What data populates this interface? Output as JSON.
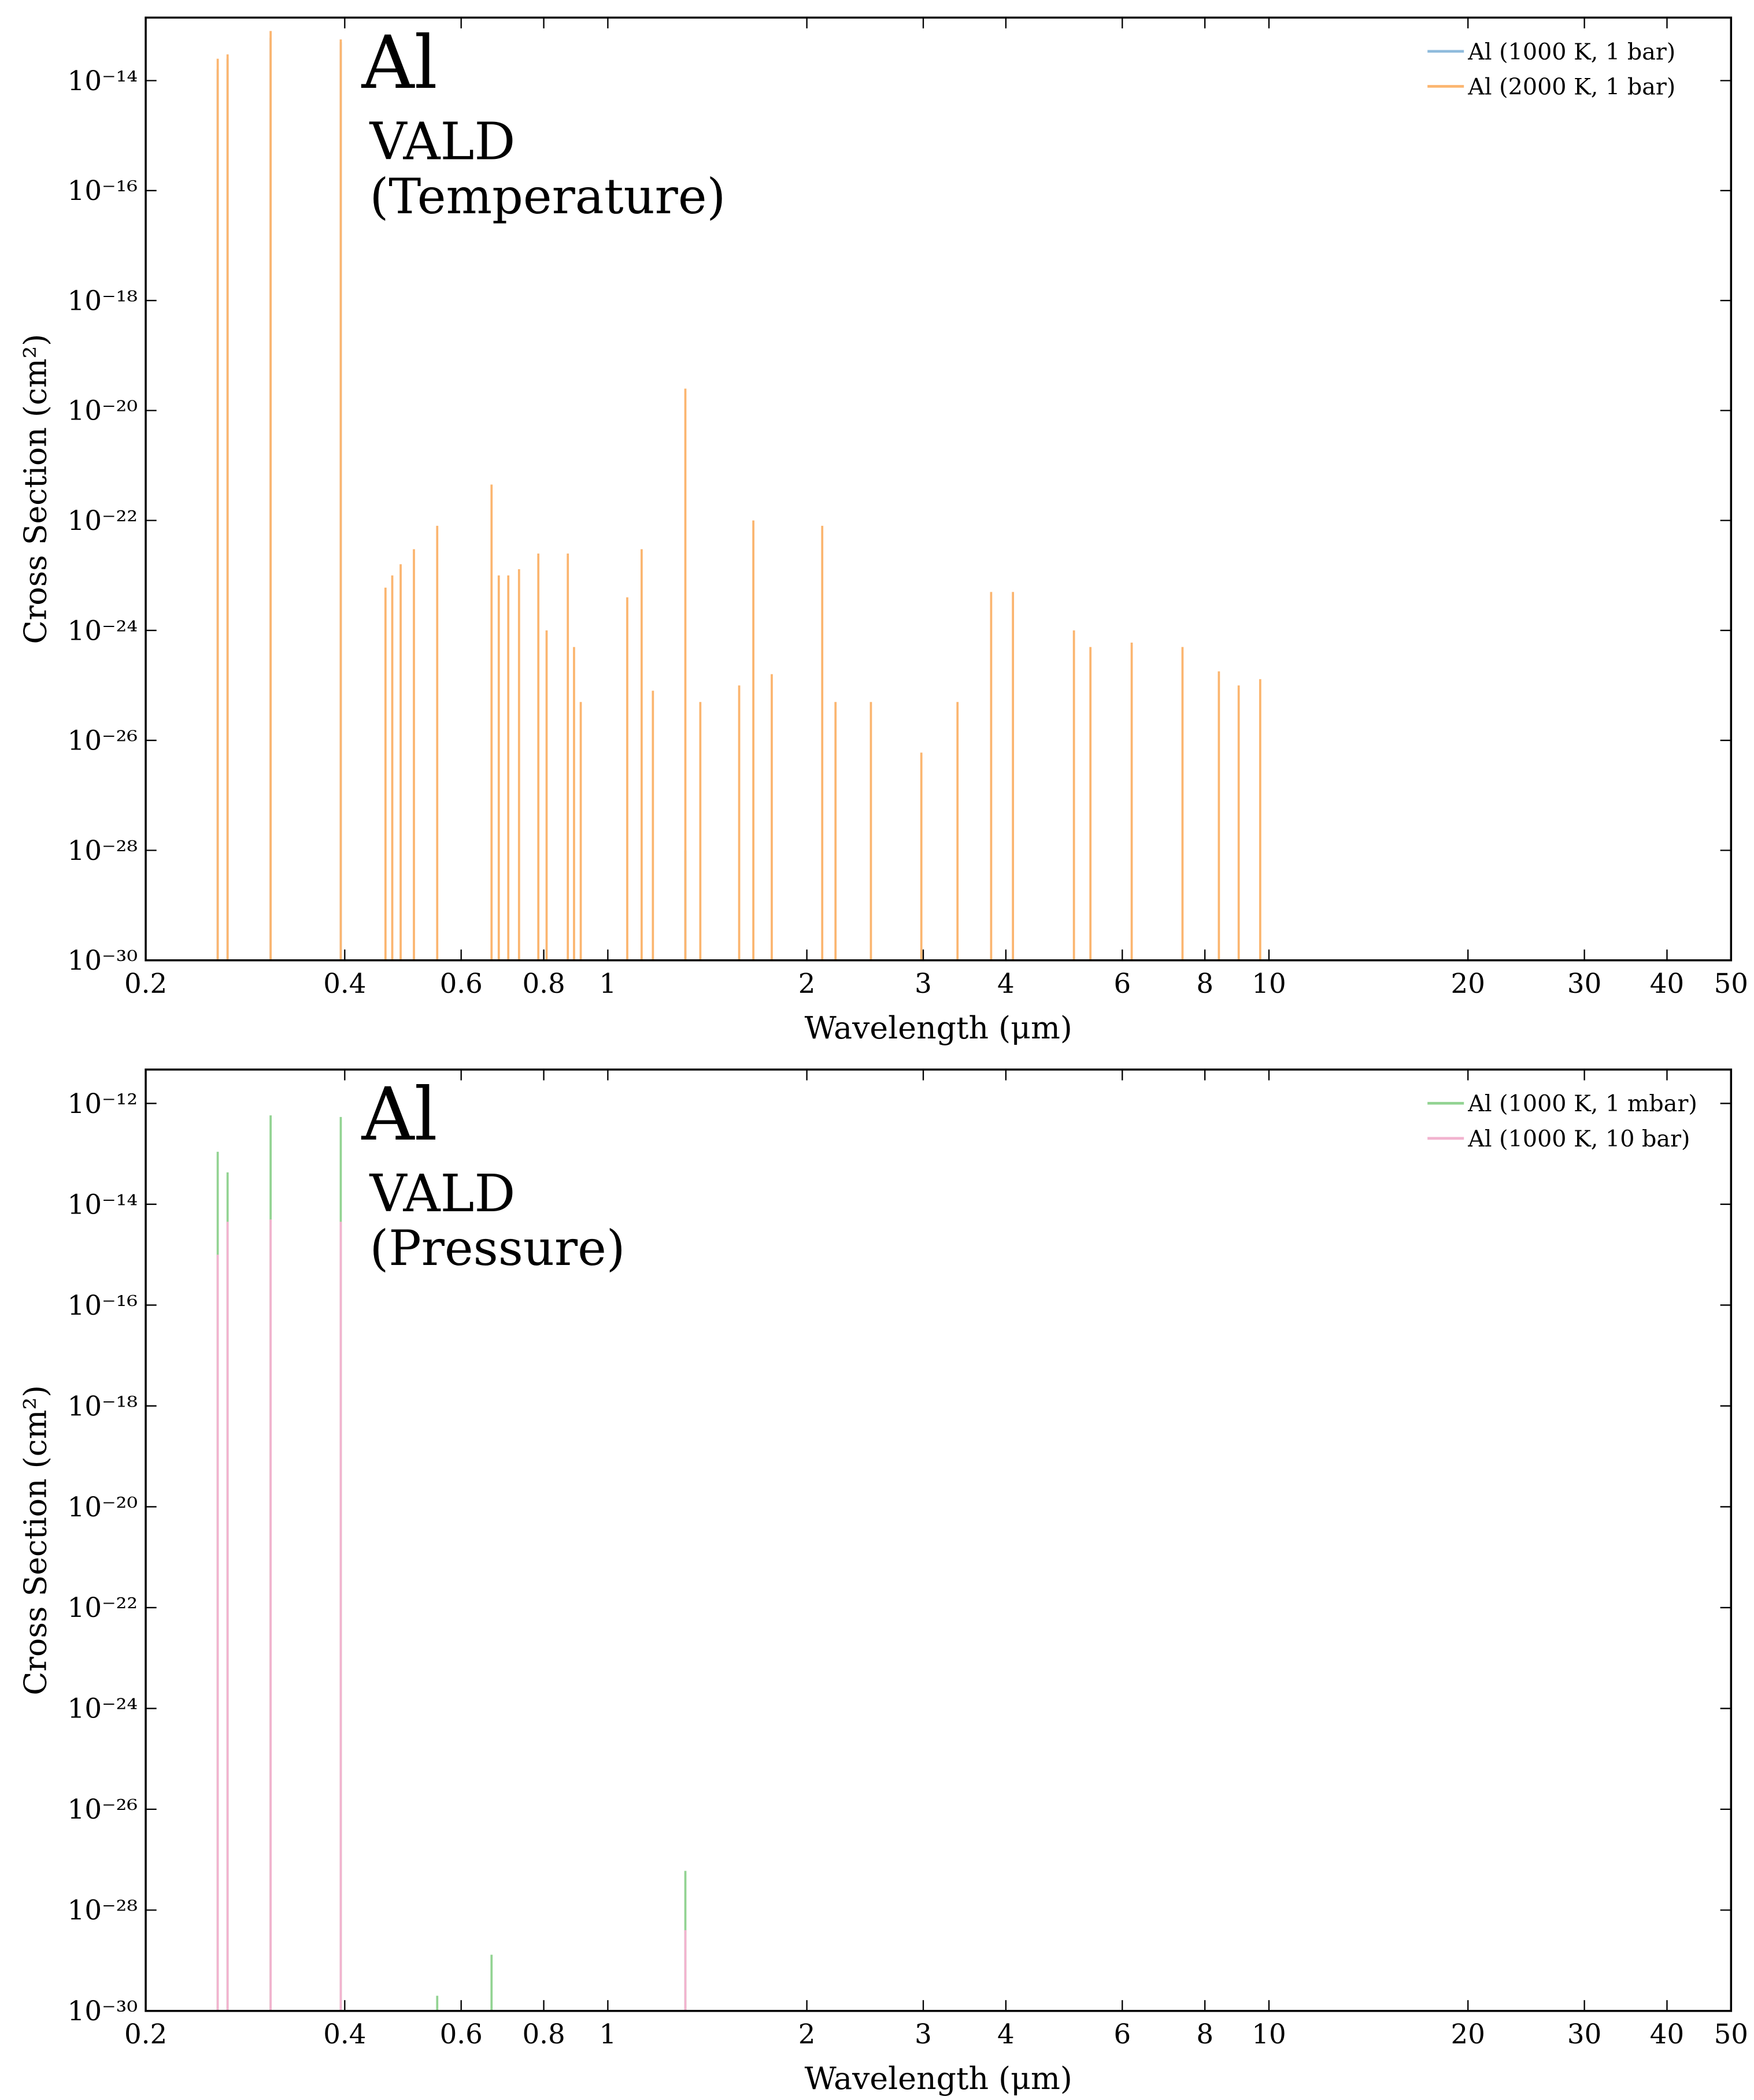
{
  "chart_data": [
    {
      "type": "spectrum",
      "xscale": "log",
      "yscale": "log",
      "legend": "upper right",
      "annotations": [
        "Al",
        "VALD",
        "(Temperature)"
      ],
      "xlabel": "Wavelength (μm)",
      "ylabel": "Cross Section (cm²)",
      "xlim": [
        0.2,
        50
      ],
      "ylim": [
        1e-30,
        1.4e-13
      ],
      "xticks": [
        0.2,
        0.4,
        0.6,
        0.8,
        1,
        2,
        3,
        4,
        6,
        8,
        10,
        20,
        30,
        40,
        50
      ],
      "yticks": [
        {
          "value": 1e-30,
          "label": "10⁻³⁰"
        },
        {
          "value": 1e-28,
          "label": "10⁻²⁸"
        },
        {
          "value": 1e-26,
          "label": "10⁻²⁶"
        },
        {
          "value": 1e-24,
          "label": "10⁻²⁴"
        },
        {
          "value": 1e-22,
          "label": "10⁻²²"
        },
        {
          "value": 1e-20,
          "label": "10⁻²⁰"
        },
        {
          "value": 1e-18,
          "label": "10⁻¹⁸"
        },
        {
          "value": 1e-16,
          "label": "10⁻¹⁶"
        },
        {
          "value": 1e-14,
          "label": "10⁻¹⁴"
        }
      ],
      "x": [
        0.257,
        0.266,
        0.309,
        0.3945,
        0.461,
        0.472,
        0.486,
        0.509,
        0.552,
        0.667,
        0.684,
        0.707,
        0.734,
        0.785,
        0.808,
        0.87,
        0.889,
        0.91,
        1.07,
        1.125,
        1.17,
        1.31,
        1.38,
        1.58,
        1.66,
        1.77,
        2.11,
        2.21,
        2.5,
        2.98,
        3.38,
        3.8,
        4.1,
        5.07,
        5.37,
        6.2,
        7.4,
        8.4,
        9.0,
        9.7
      ],
      "series": [
        {
          "name": "Al (1000 K, 1 bar)",
          "color": "#8fbbdc",
          "values": [
            1.6e-14,
            2.5e-14,
            6e-14,
            5e-14,
            null,
            null,
            null,
            null,
            null,
            null,
            null,
            null,
            null,
            null,
            null,
            null,
            null,
            null,
            null,
            null,
            null,
            1e-28,
            null,
            null,
            null,
            null,
            null,
            null,
            null,
            null,
            null,
            null,
            null,
            null,
            null,
            null,
            null,
            null,
            null,
            null
          ]
        },
        {
          "name": "Al (2000 K, 1 bar)",
          "color": "#fbb56f",
          "values": [
            2.5e-14,
            3e-14,
            8e-14,
            5.6e-14,
            6e-24,
            1e-23,
            1.6e-23,
            3e-23,
            8e-23,
            4.5e-22,
            1e-23,
            1e-23,
            1.3e-23,
            2.5e-23,
            1e-24,
            2.5e-23,
            5e-25,
            5e-26,
            4e-24,
            3e-23,
            8e-26,
            2.5e-20,
            5e-26,
            1e-25,
            1e-22,
            1.6e-25,
            8e-23,
            5e-26,
            5e-26,
            6e-27,
            5e-26,
            5e-24,
            5e-24,
            1e-24,
            5e-25,
            6e-25,
            5e-25,
            1.8e-25,
            1e-25,
            1.3e-25
          ]
        }
      ]
    },
    {
      "type": "spectrum",
      "xscale": "log",
      "yscale": "log",
      "legend": "upper right",
      "annotations": [
        "Al",
        "VALD",
        "(Pressure)"
      ],
      "xlabel": "Wavelength (μm)",
      "ylabel": "Cross Section (cm²)",
      "xlim": [
        0.2,
        50
      ],
      "ylim": [
        1e-30,
        4.7e-12
      ],
      "xticks": [
        0.2,
        0.4,
        0.6,
        0.8,
        1,
        2,
        3,
        4,
        6,
        8,
        10,
        20,
        30,
        40,
        50
      ],
      "yticks": [
        {
          "value": 1e-30,
          "label": "10⁻³⁰"
        },
        {
          "value": 1e-28,
          "label": "10⁻²⁸"
        },
        {
          "value": 1e-26,
          "label": "10⁻²⁶"
        },
        {
          "value": 1e-24,
          "label": "10⁻²⁴"
        },
        {
          "value": 1e-22,
          "label": "10⁻²²"
        },
        {
          "value": 1e-20,
          "label": "10⁻²⁰"
        },
        {
          "value": 1e-18,
          "label": "10⁻¹⁸"
        },
        {
          "value": 1e-16,
          "label": "10⁻¹⁶"
        },
        {
          "value": 1e-14,
          "label": "10⁻¹⁴"
        },
        {
          "value": 1e-12,
          "label": "10⁻¹²"
        }
      ],
      "x": [
        0.257,
        0.266,
        0.309,
        0.3945,
        0.552,
        0.667,
        1.31
      ],
      "series": [
        {
          "name": "Al (1000 K, 1 mbar)",
          "color": "#92d392",
          "values": [
            1.1e-13,
            4.3e-14,
            5.8e-13,
            5.4e-13,
            2e-30,
            1.3e-29,
            6e-28
          ]
        },
        {
          "name": "Al (1000 K, 10 bar)",
          "color": "#f2b3cf",
          "values": [
            1e-15,
            4.5e-15,
            5e-15,
            4.5e-15,
            null,
            null,
            4e-29
          ]
        }
      ]
    }
  ]
}
